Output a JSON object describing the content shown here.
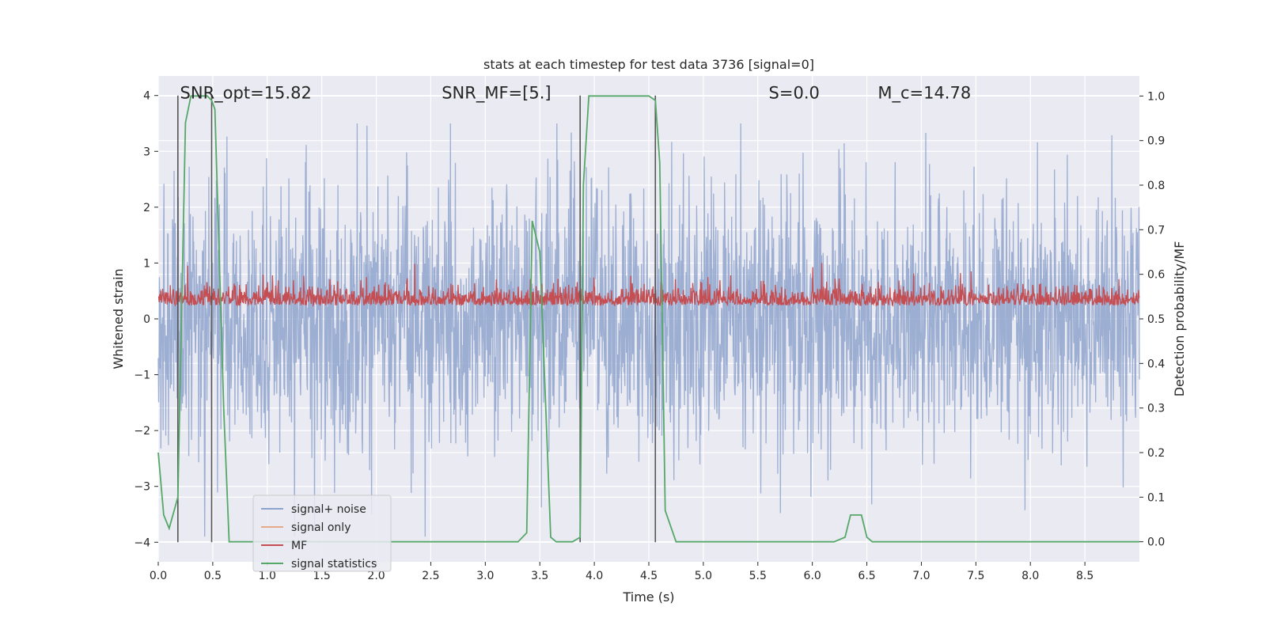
{
  "chart_data": {
    "type": "line",
    "title": "stats at each timestep for test data 3736 [signal=0]",
    "xlabel": "Time (s)",
    "ylabel_left": "Whitened strain",
    "ylabel_right": "Detection probability/MF",
    "xlim": [
      0,
      9.0
    ],
    "ylim_left": [
      -4.35,
      4.35
    ],
    "ylim_right": [
      -0.045,
      1.045
    ],
    "x_ticks": [
      0.0,
      0.5,
      1.0,
      1.5,
      2.0,
      2.5,
      3.0,
      3.5,
      4.0,
      4.5,
      5.0,
      5.5,
      6.0,
      6.5,
      7.0,
      7.5,
      8.0,
      8.5
    ],
    "x_tick_labels": [
      "0.0",
      "0.5",
      "1.0",
      "1.5",
      "2.0",
      "2.5",
      "3.0",
      "3.5",
      "4.0",
      "4.5",
      "5.0",
      "5.5",
      "6.0",
      "6.5",
      "7.0",
      "7.5",
      "8.0",
      "8.5"
    ],
    "y_ticks_left": [
      -4,
      -3,
      -2,
      -1,
      0,
      1,
      2,
      3,
      4
    ],
    "y_tick_labels_left": [
      "−4",
      "−3",
      "−2",
      "−1",
      "0",
      "1",
      "2",
      "3",
      "4"
    ],
    "y_ticks_right": [
      0.0,
      0.1,
      0.2,
      0.3,
      0.4,
      0.5,
      0.6,
      0.7,
      0.8,
      0.9,
      1.0
    ],
    "y_tick_labels_right": [
      "0.0",
      "0.1",
      "0.2",
      "0.3",
      "0.4",
      "0.5",
      "0.6",
      "0.7",
      "0.8",
      "0.9",
      "1.0"
    ],
    "annotations": [
      {
        "text": "SNR_opt=15.82",
        "x": 0.2,
        "y": 4.0
      },
      {
        "text": "SNR_MF=[5.]",
        "x": 2.6,
        "y": 4.0
      },
      {
        "text": "S=0.0",
        "x": 5.6,
        "y": 4.0
      },
      {
        "text": "M_c=14.78",
        "x": 6.6,
        "y": 4.0
      }
    ],
    "vertical_lines": [
      {
        "x": 0.18,
        "ymin": -4.0,
        "ymax": 4.0
      },
      {
        "x": 0.49,
        "ymin": -4.0,
        "ymax": 4.0
      },
      {
        "x": 3.87,
        "ymin": -4.0,
        "ymax": 4.0
      },
      {
        "x": 4.56,
        "ymin": -4.0,
        "ymax": 4.0
      }
    ],
    "series": [
      {
        "name": "signal+ noise",
        "axis": "left",
        "color": "#8ea3cc",
        "kind": "noise",
        "approx_range": [
          -3.9,
          3.5
        ]
      },
      {
        "name": "signal only",
        "axis": "left",
        "color": "#e8a98a",
        "kind": "line",
        "x": [],
        "y": []
      },
      {
        "name": "MF",
        "axis": "left",
        "color": "#c44e52",
        "kind": "noise",
        "approx_range": [
          0.0,
          1.0
        ]
      },
      {
        "name": "signal statistics",
        "axis": "right",
        "color": "#55a868",
        "kind": "line",
        "x": [
          0.0,
          0.05,
          0.1,
          0.18,
          0.25,
          0.3,
          0.35,
          0.45,
          0.49,
          0.52,
          0.6,
          0.65,
          0.8,
          1.0,
          2.0,
          3.0,
          3.3,
          3.38,
          3.43,
          3.5,
          3.6,
          3.65,
          3.8,
          3.87,
          3.9,
          3.95,
          4.1,
          4.4,
          4.5,
          4.56,
          4.6,
          4.65,
          4.75,
          4.8,
          5.0,
          6.0,
          6.2,
          6.3,
          6.35,
          6.45,
          6.5,
          6.55,
          6.6,
          7.0,
          9.0
        ],
        "y": [
          0.2,
          0.06,
          0.03,
          0.1,
          0.94,
          1.0,
          1.0,
          1.0,
          0.99,
          0.97,
          0.3,
          0.0,
          0.0,
          0.0,
          0.0,
          0.0,
          0.0,
          0.02,
          0.72,
          0.65,
          0.01,
          0.0,
          0.0,
          0.01,
          0.8,
          1.0,
          1.0,
          1.0,
          1.0,
          0.99,
          0.85,
          0.07,
          0.0,
          0.0,
          0.0,
          0.0,
          0.0,
          0.01,
          0.06,
          0.06,
          0.01,
          0.0,
          0.0,
          0.0,
          0.0
        ]
      }
    ],
    "legend_location": "lower-left"
  }
}
